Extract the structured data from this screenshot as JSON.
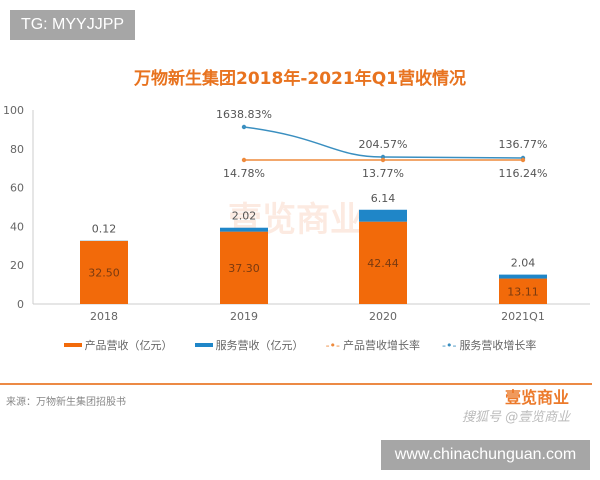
{
  "watermarks": {
    "tg": "TG: MYYJJPP",
    "site": "www.chinachunguan.com",
    "logo": "壹览商业",
    "logo_sub": "搜狐号 @壹览商业"
  },
  "source": "来源：万物新生集团招股书",
  "colors": {
    "product": "#f26a0a",
    "service": "#1f86c8",
    "product_line": "#ee8a3c",
    "service_line": "#3a8fc0",
    "title": "#e8731f"
  },
  "chart_data": {
    "type": "bar",
    "stacked": true,
    "title": "万物新生集团2018年-2021年Q1营收情况",
    "categories": [
      "2018",
      "2019",
      "2020",
      "2021Q1"
    ],
    "ylim": [
      0,
      100
    ],
    "yticks": [
      "0",
      "20",
      "40",
      "60",
      "80",
      "100"
    ],
    "grid": false,
    "legend_position": "bottom",
    "series": [
      {
        "name": "产品营收（亿元）",
        "type": "bar",
        "values": [
          32.5,
          37.3,
          42.44,
          13.11
        ],
        "labels": [
          "32.50",
          "37.30",
          "42.44",
          "13.11"
        ]
      },
      {
        "name": "服务营收（亿元）",
        "type": "bar",
        "values": [
          0.12,
          2.02,
          6.14,
          2.04
        ],
        "labels": [
          "0.12",
          "2.02",
          "6.14",
          "2.04"
        ]
      },
      {
        "name": "产品营收增长率",
        "type": "line",
        "values": [
          null,
          14.78,
          13.77,
          116.24
        ],
        "labels": [
          "",
          "14.78%",
          "13.77%",
          "116.24%"
        ]
      },
      {
        "name": "服务营收增长率",
        "type": "line",
        "values": [
          null,
          1638.83,
          204.57,
          136.77
        ],
        "labels": [
          "",
          "1638.83%",
          "204.57%",
          "136.77%"
        ]
      }
    ]
  }
}
